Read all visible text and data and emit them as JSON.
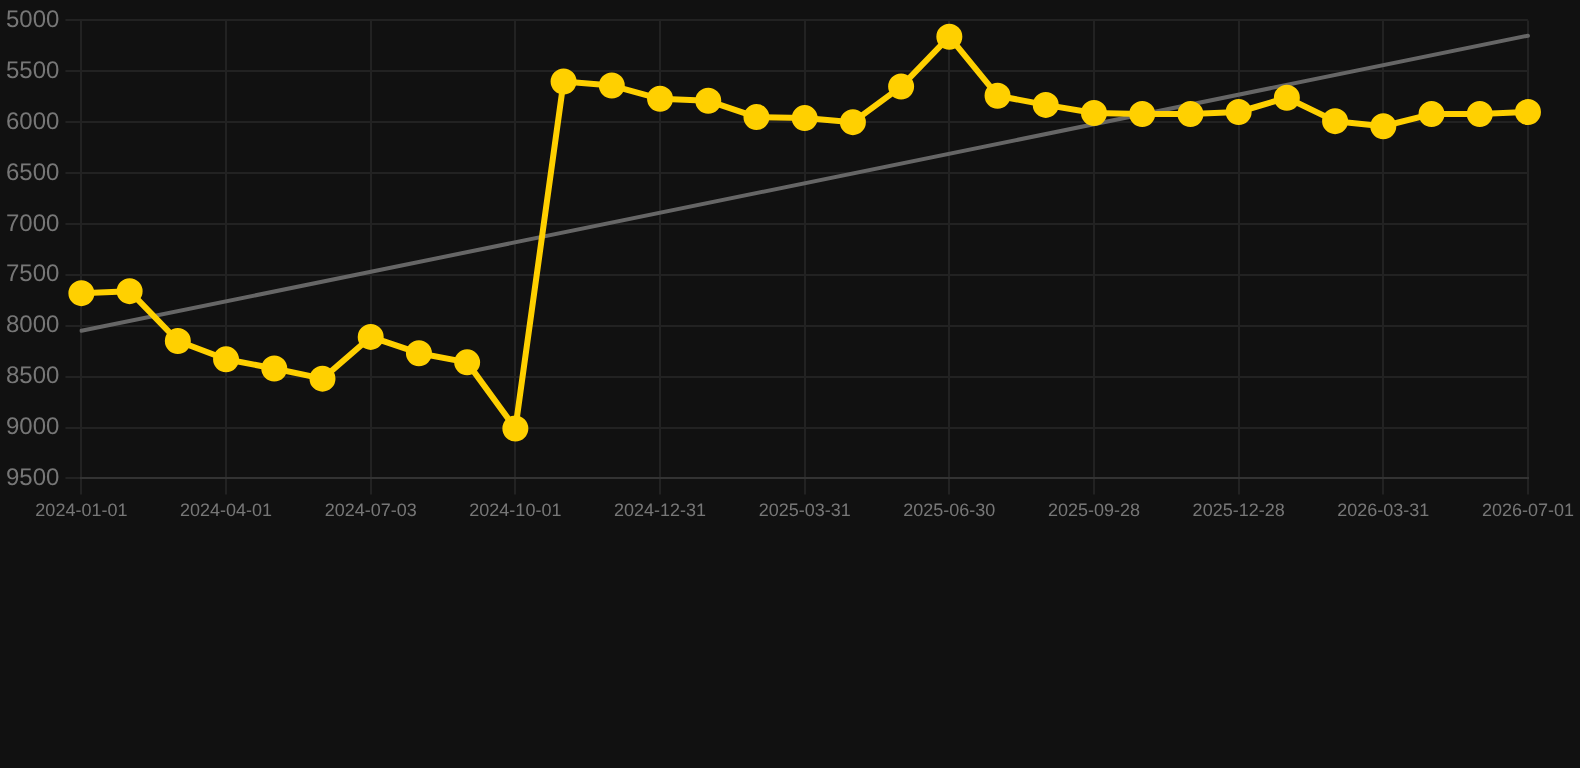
{
  "chart_data": {
    "type": "line",
    "categories": [
      "2024-01-01",
      null,
      null,
      "2024-04-01",
      null,
      null,
      "2024-07-03",
      null,
      null,
      "2024-10-01",
      null,
      null,
      "2024-12-31",
      null,
      null,
      "2025-03-31",
      null,
      null,
      "2025-06-30",
      null,
      null,
      "2025-09-28",
      null,
      null,
      "2025-12-28",
      null,
      null,
      "2026-03-31",
      null,
      null,
      "2026-07-01"
    ],
    "series": [
      {
        "type": "line",
        "color": "#ffd000",
        "marker": "circle",
        "values": [
          7680,
          7660,
          8150,
          8330,
          8420,
          8520,
          8110,
          8270,
          8360,
          9010,
          5600,
          5640,
          5770,
          5790,
          5950,
          5960,
          6000,
          5650,
          5160,
          5740,
          5830,
          5910,
          5920,
          5920,
          5900,
          5760,
          5990,
          6040,
          5920,
          5920,
          5900
        ]
      },
      {
        "type": "line",
        "color": "#666666",
        "marker": "none",
        "values": [
          8050,
          null,
          null,
          null,
          null,
          null,
          null,
          null,
          null,
          null,
          null,
          null,
          null,
          null,
          null,
          null,
          null,
          null,
          null,
          null,
          null,
          null,
          null,
          null,
          null,
          null,
          null,
          null,
          null,
          null,
          5150
        ]
      }
    ],
    "ylim": [
      9500,
      5000
    ],
    "yticks": [
      5000,
      5500,
      6000,
      6500,
      7000,
      7500,
      8000,
      8500,
      9000,
      9500
    ],
    "grid": true,
    "legend": false
  }
}
